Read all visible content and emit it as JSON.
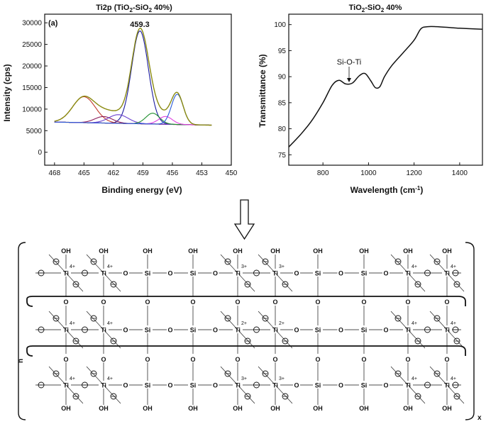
{
  "chart_data": [
    {
      "type": "line",
      "title": "Ti2p (TiO2-SiO2 40%)",
      "title_main": "Ti2p (TiO",
      "title_sub1": "2",
      "title_mid": "-SiO",
      "title_sub2": "2",
      "title_end": " 40%)",
      "panel_label": "(a)",
      "peak_label": "459.3",
      "xlabel": "Binding energy (eV)",
      "ylabel": "Intensity (cps)",
      "xlim": [
        469,
        450
      ],
      "ylim": [
        -3000,
        32000
      ],
      "x_ticks": [
        "468",
        "465",
        "462",
        "459",
        "456",
        "453",
        "450"
      ],
      "y_ticks": [
        "0",
        "5000",
        "10000",
        "15000",
        "20000",
        "25000",
        "30000"
      ],
      "background": 7000,
      "components": [
        {
          "name": "Peak 459.3",
          "color": "#1a1a9e",
          "center": 459.3,
          "height": 21500,
          "width": 0.85
        },
        {
          "name": "Peak 465.0",
          "color": "#c0392b",
          "center": 465.0,
          "height": 6000,
          "width": 1.15
        },
        {
          "name": "Peak 463.0",
          "color": "#8b1a5a",
          "center": 463.0,
          "height": 1500,
          "width": 0.9
        },
        {
          "name": "Peak 461.5",
          "color": "#6a3fd0",
          "center": 461.5,
          "height": 2000,
          "width": 1.0
        },
        {
          "name": "Peak 458.0",
          "color": "#1e8f2e",
          "center": 458.0,
          "height": 2500,
          "width": 0.7
        },
        {
          "name": "Peak 456.7",
          "color": "#e040e0",
          "center": 456.7,
          "height": 1800,
          "width": 0.7
        },
        {
          "name": "Peak 455.5",
          "color": "#2a5bd7",
          "center": 455.5,
          "height": 7000,
          "width": 0.6
        }
      ],
      "envelope_color": "#8a8a10"
    },
    {
      "type": "line",
      "title": "TiO2-SiO2 40%",
      "title_main": "TiO",
      "title_sub1": "2",
      "title_mid": "-SiO",
      "title_sub2": "2",
      "title_end": " 40%",
      "annotation": "Si-O-Ti",
      "xlabel": "Wavelength (cm-1)",
      "xlabel_main": "Wavelength (cm",
      "xlabel_sup": "-1",
      "xlabel_end": ")",
      "ylabel": "Transmittance (%)",
      "xlim": [
        650,
        1500
      ],
      "ylim": [
        73,
        102
      ],
      "x_ticks": [
        "800",
        "1000",
        "1200",
        "1400"
      ],
      "y_ticks": [
        "75",
        "80",
        "85",
        "90",
        "95",
        "100"
      ],
      "x": [
        650,
        700,
        750,
        800,
        840,
        870,
        900,
        930,
        960,
        985,
        1010,
        1030,
        1050,
        1070,
        1100,
        1150,
        1200,
        1230,
        1260,
        1300,
        1400,
        1500
      ],
      "y": [
        76.5,
        78.8,
        81.5,
        85,
        88.3,
        89.3,
        88.6,
        88.8,
        90.2,
        90.6,
        89.2,
        87.9,
        88.1,
        90,
        92,
        94.5,
        97,
        99.2,
        99.6,
        99.6,
        99.3,
        99.1
      ]
    }
  ],
  "structure": {
    "rows": [
      {
        "charges": [
          "4+",
          "4+",
          "",
          "",
          "3+",
          "3+",
          "",
          "",
          "4+",
          "4+"
        ]
      },
      {
        "charges": [
          "4+",
          "4+",
          "",
          "",
          "2+",
          "2+",
          "",
          "",
          "4+",
          "4+"
        ]
      },
      {
        "charges": [
          "4+",
          "4+",
          "",
          "",
          "3+",
          "3+",
          "",
          "",
          "4+",
          "4+"
        ]
      }
    ],
    "atoms": [
      "Ti",
      "Ti",
      "Si",
      "Si",
      "Ti",
      "Ti",
      "Si",
      "Si",
      "Ti",
      "Ti"
    ],
    "oh_label": "OH",
    "o_label": "O",
    "subscript_n": "n",
    "subscript_x": "x"
  }
}
